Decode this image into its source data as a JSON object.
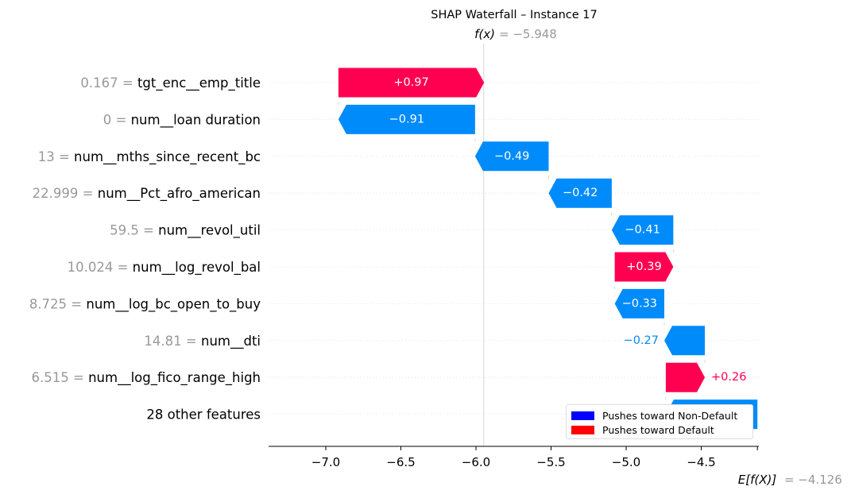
{
  "chart_data": {
    "type": "waterfall",
    "title": "SHAP Waterfall – Instance 17",
    "fx_label": "f(x)",
    "fx_value": "= −5.948",
    "base_label": "E[f(X)]",
    "base_value": "= −4.126",
    "fx": -5.948,
    "base": -4.126,
    "xlim": [
      -7.35,
      -4.12
    ],
    "xticks": [
      -7.0,
      -6.5,
      -6.0,
      -5.5,
      -5.0,
      -4.5
    ],
    "xtick_labels": [
      "−7.0",
      "−6.5",
      "−6.0",
      "−5.5",
      "−5.0",
      "−4.5"
    ],
    "colors": {
      "positive": "#ff0051",
      "negative": "#008bfb",
      "legend_non_default": "#0000ff",
      "legend_default": "#ff0000",
      "value_gray": "#999999"
    },
    "features": [
      {
        "value_text": "0.167 =",
        "name": "tgt_enc__emp_title",
        "shap": 0.97,
        "shap_label": "+0.97",
        "label_inside": true
      },
      {
        "value_text": "0 =",
        "name": "num__loan duration",
        "shap": -0.91,
        "shap_label": "−0.91",
        "label_inside": true
      },
      {
        "value_text": "13 =",
        "name": "num__mths_since_recent_bc",
        "shap": -0.49,
        "shap_label": "−0.49",
        "label_inside": true
      },
      {
        "value_text": "22.999 =",
        "name": "num__Pct_afro_american",
        "shap": -0.42,
        "shap_label": "−0.42",
        "label_inside": true
      },
      {
        "value_text": "59.5 =",
        "name": "num__revol_util",
        "shap": -0.41,
        "shap_label": "−0.41",
        "label_inside": true
      },
      {
        "value_text": "10.024 =",
        "name": "num__log_revol_bal",
        "shap": 0.39,
        "shap_label": "+0.39",
        "label_inside": true
      },
      {
        "value_text": "8.725 =",
        "name": "num__log_bc_open_to_buy",
        "shap": -0.33,
        "shap_label": "−0.33",
        "label_inside": true
      },
      {
        "value_text": "14.81 =",
        "name": "num__dti",
        "shap": -0.27,
        "shap_label": "−0.27",
        "label_inside": false
      },
      {
        "value_text": "6.515 =",
        "name": "num__log_fico_range_high",
        "shap": 0.26,
        "shap_label": "+0.26",
        "label_inside": false
      },
      {
        "value_text": "",
        "name": "28 other features",
        "shap": -0.61,
        "shap_label": "−0.61",
        "label_inside": true
      }
    ]
  },
  "legend": {
    "items": [
      {
        "label": "Pushes toward Non-Default",
        "color": "#0000ff"
      },
      {
        "label": "Pushes toward Default",
        "color": "#ff0000"
      }
    ]
  }
}
